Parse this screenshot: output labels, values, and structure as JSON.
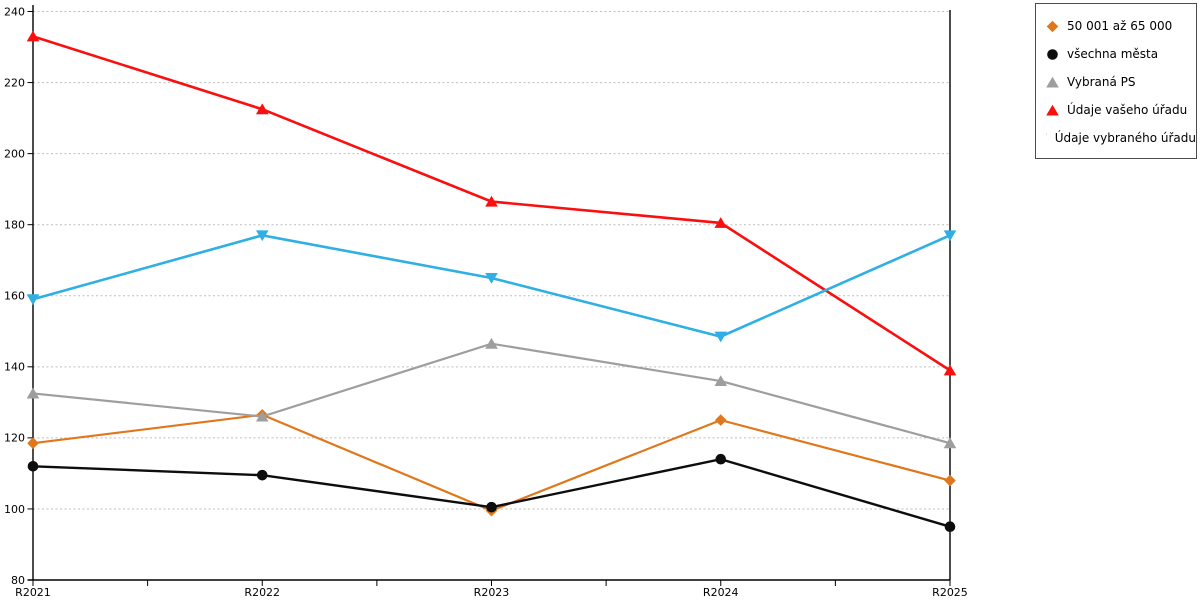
{
  "chart_data": {
    "type": "line",
    "title": "",
    "xlabel": "",
    "ylabel": "",
    "x": [
      "R2021",
      "R2022",
      "R2023",
      "R2024",
      "R2025"
    ],
    "ylim": [
      80,
      240
    ],
    "y_ticks": [
      80,
      100,
      120,
      140,
      160,
      180,
      200,
      220,
      240
    ],
    "grid": "horizontal-dotted",
    "legend_position": "top-right",
    "axis_color": "#000000",
    "gridline_color": "#bdbdbd",
    "background": "#ffffff",
    "series": [
      {
        "name": "50 001 až 65 000",
        "slug": "50001-az-65000",
        "marker": "diamond",
        "color": "#E0771A",
        "line_width": 2.2,
        "values": [
          118.5,
          126.5,
          99.5,
          125,
          108
        ]
      },
      {
        "name": "všechna města",
        "slug": "vsechna-mesta",
        "marker": "circle",
        "color": "#0d0d0d",
        "line_width": 2.4,
        "values": [
          112,
          109.5,
          100.5,
          114,
          95
        ]
      },
      {
        "name": "Vybraná PS",
        "slug": "vybrana-ps",
        "marker": "triangle-up",
        "color": "#9E9E9E",
        "line_width": 2.2,
        "values": [
          132.5,
          126,
          146.5,
          136,
          118.5
        ]
      },
      {
        "name": "Údaje vašeho úřadu",
        "slug": "udaje-vaseho-uradu",
        "marker": "triangle-up",
        "color": "#FA0F0F",
        "line_width": 2.6,
        "values": [
          233,
          212.5,
          186.5,
          180.5,
          139
        ]
      },
      {
        "name": "Údaje vybraného úřadu",
        "slug": "udaje-vybraneho-uradu",
        "marker": "triangle-down",
        "color": "#2FAFE4",
        "line_width": 2.6,
        "values": [
          159,
          177,
          165,
          148.5,
          177
        ]
      }
    ]
  }
}
